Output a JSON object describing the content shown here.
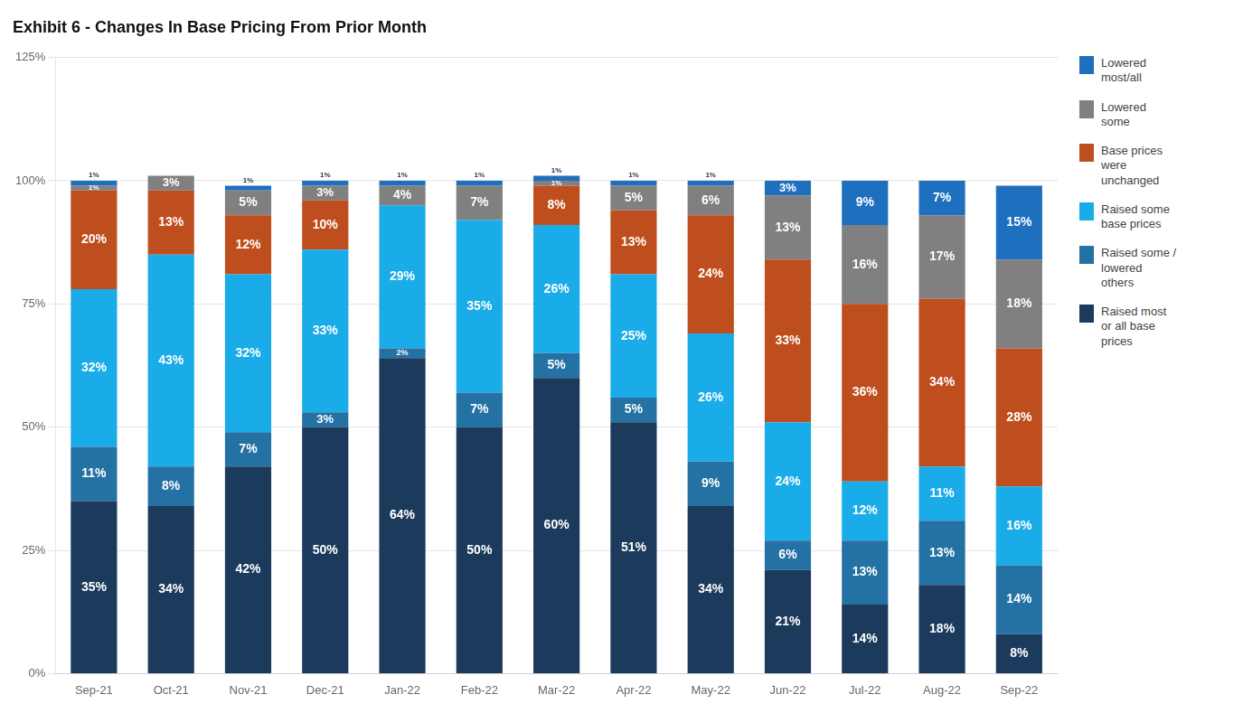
{
  "chart_data": {
    "type": "bar",
    "stacked": true,
    "title": "Exhibit 6 - Changes In Base Pricing From Prior Month",
    "categories": [
      "Sep-21",
      "Oct-21",
      "Nov-21",
      "Dec-21",
      "Jan-22",
      "Feb-22",
      "Mar-22",
      "Apr-22",
      "May-22",
      "Jun-22",
      "Jul-22",
      "Aug-22",
      "Sep-22"
    ],
    "series": [
      {
        "name": "Raised most\nor all base\nprices",
        "color": "#1b3a5c",
        "values": [
          35,
          34,
          42,
          50,
          64,
          50,
          60,
          51,
          34,
          21,
          14,
          18,
          8
        ],
        "value_labels": [
          "35%",
          "34%",
          "42%",
          "50%",
          "64%",
          "50%",
          "60%",
          "51%",
          "34%",
          "21%",
          "14%",
          "18%",
          "8%"
        ]
      },
      {
        "name": "Raised some /\nlowered\nothers",
        "color": "#2471a3",
        "values": [
          11,
          8,
          7,
          3,
          2,
          7,
          5,
          5,
          9,
          6,
          13,
          13,
          14
        ],
        "value_labels": [
          "11%",
          "8%",
          "7%",
          "3%",
          "2%",
          "7%",
          "5%",
          "5%",
          "9%",
          "6%",
          "13%",
          "13%",
          "14%"
        ]
      },
      {
        "name": "Raised some\nbase prices",
        "color": "#1aace8",
        "values": [
          32,
          43,
          32,
          33,
          29,
          35,
          26,
          25,
          26,
          24,
          12,
          11,
          16
        ],
        "value_labels": [
          "32%",
          "43%",
          "32%",
          "33%",
          "29%",
          "35%",
          "26%",
          "25%",
          "26%",
          "24%",
          "12%",
          "11%",
          "16%"
        ]
      },
      {
        "name": "Base prices\nwere\nunchanged",
        "color": "#bf4e1e",
        "values": [
          20,
          13,
          12,
          10,
          0,
          0,
          8,
          13,
          24,
          33,
          36,
          34,
          28
        ],
        "value_labels": [
          "20%",
          "13%",
          "12%",
          "10%",
          null,
          null,
          "8%",
          "13%",
          "24%",
          "33%",
          "36%",
          "34%",
          "28%"
        ]
      },
      {
        "name": "Lowered\nsome",
        "color": "#808080",
        "values": [
          1,
          3,
          5,
          3,
          4,
          7,
          1,
          5,
          6,
          13,
          16,
          17,
          18
        ],
        "value_labels": [
          "1%",
          "3%",
          "5%",
          "3%",
          "4%",
          "7%",
          "1%",
          "5%",
          "6%",
          "13%",
          "16%",
          "17%",
          "18%"
        ]
      },
      {
        "name": "Lowered\nmost/all",
        "color": "#1f6fbf",
        "values": [
          1,
          0,
          1,
          1,
          1,
          1,
          1,
          1,
          1,
          3,
          9,
          7,
          15
        ],
        "value_labels": [
          "1%",
          null,
          "1%",
          "1%",
          "1%",
          "1%",
          "1%",
          "1%",
          "1%",
          "3%",
          "9%",
          "7%",
          "15%"
        ]
      }
    ],
    "ylim": [
      0,
      125
    ],
    "yticks": [
      {
        "value": 0,
        "label": "0%"
      },
      {
        "value": 25,
        "label": "25%"
      },
      {
        "value": 50,
        "label": "50%"
      },
      {
        "value": 75,
        "label": "75%"
      },
      {
        "value": 100,
        "label": "100%"
      },
      {
        "value": 125,
        "label": "125%"
      }
    ],
    "grid": true,
    "data_labels": true,
    "legend": "right"
  }
}
